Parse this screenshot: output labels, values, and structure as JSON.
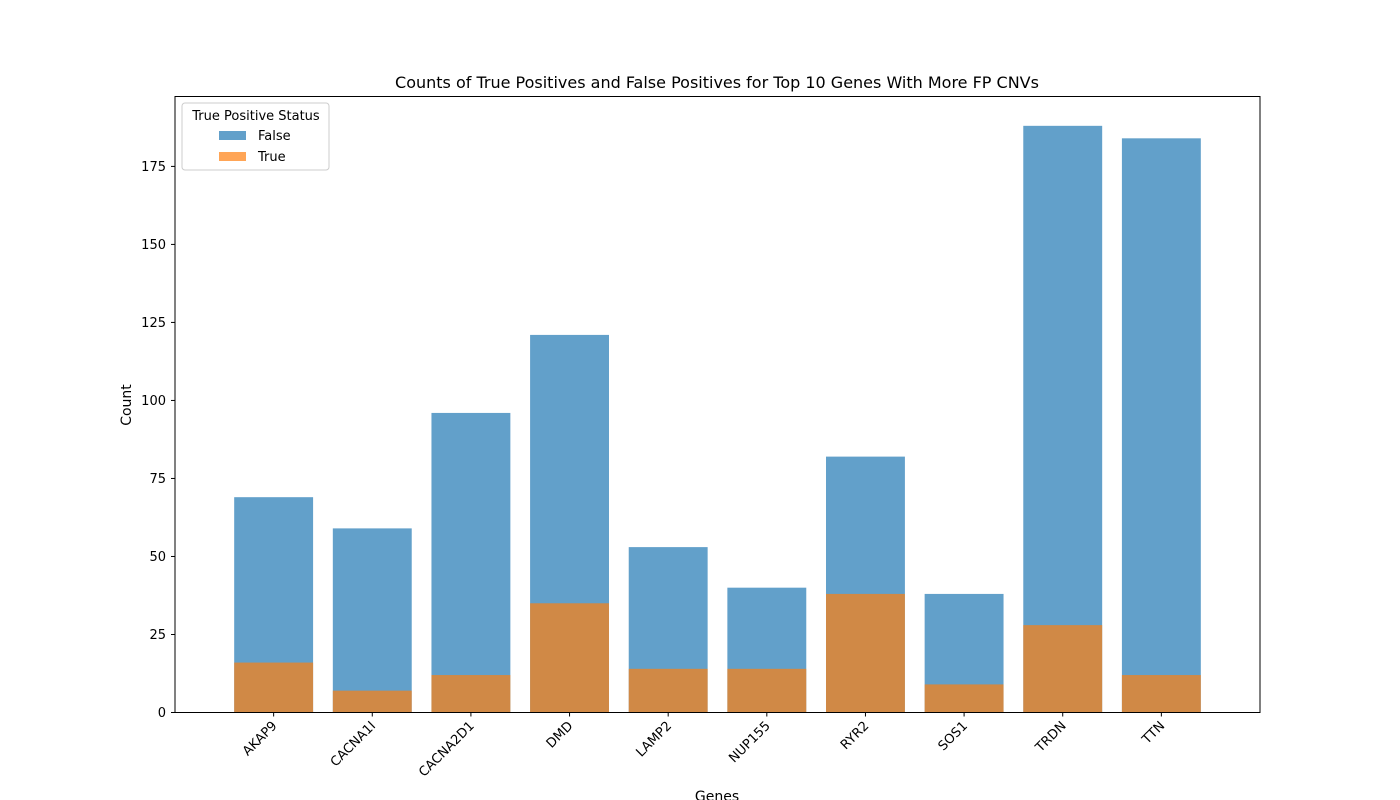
{
  "chart_data": {
    "type": "bar",
    "title": "Counts of True Positives and False Positives for Top 10 Genes With More FP CNVs",
    "xlabel": "Genes",
    "ylabel": "Count",
    "categories": [
      "AKAP9",
      "CACNA1I",
      "CACNA2D1",
      "DMD",
      "LAMP2",
      "NUP155",
      "RYR2",
      "SOS1",
      "TRDN",
      "TTN"
    ],
    "series": [
      {
        "name": "False",
        "color": "#1f77b4",
        "values": [
          69,
          59,
          96,
          121,
          53,
          40,
          82,
          38,
          188,
          184
        ]
      },
      {
        "name": "True",
        "color": "#ff7f0e",
        "values": [
          16,
          7,
          12,
          35,
          14,
          14,
          38,
          9,
          28,
          12
        ]
      }
    ],
    "overlay": true,
    "opacity": 0.7,
    "ylim": [
      0,
      197.4
    ],
    "yticks": [
      0,
      25,
      50,
      75,
      100,
      125,
      150,
      175
    ],
    "ytick_labels": [
      "0",
      "25",
      "50",
      "75",
      "100",
      "125",
      "150",
      "175"
    ],
    "xtick_rotation": 45,
    "grid": false,
    "legend": {
      "title": "True Positive Status",
      "position": "top-left"
    }
  }
}
